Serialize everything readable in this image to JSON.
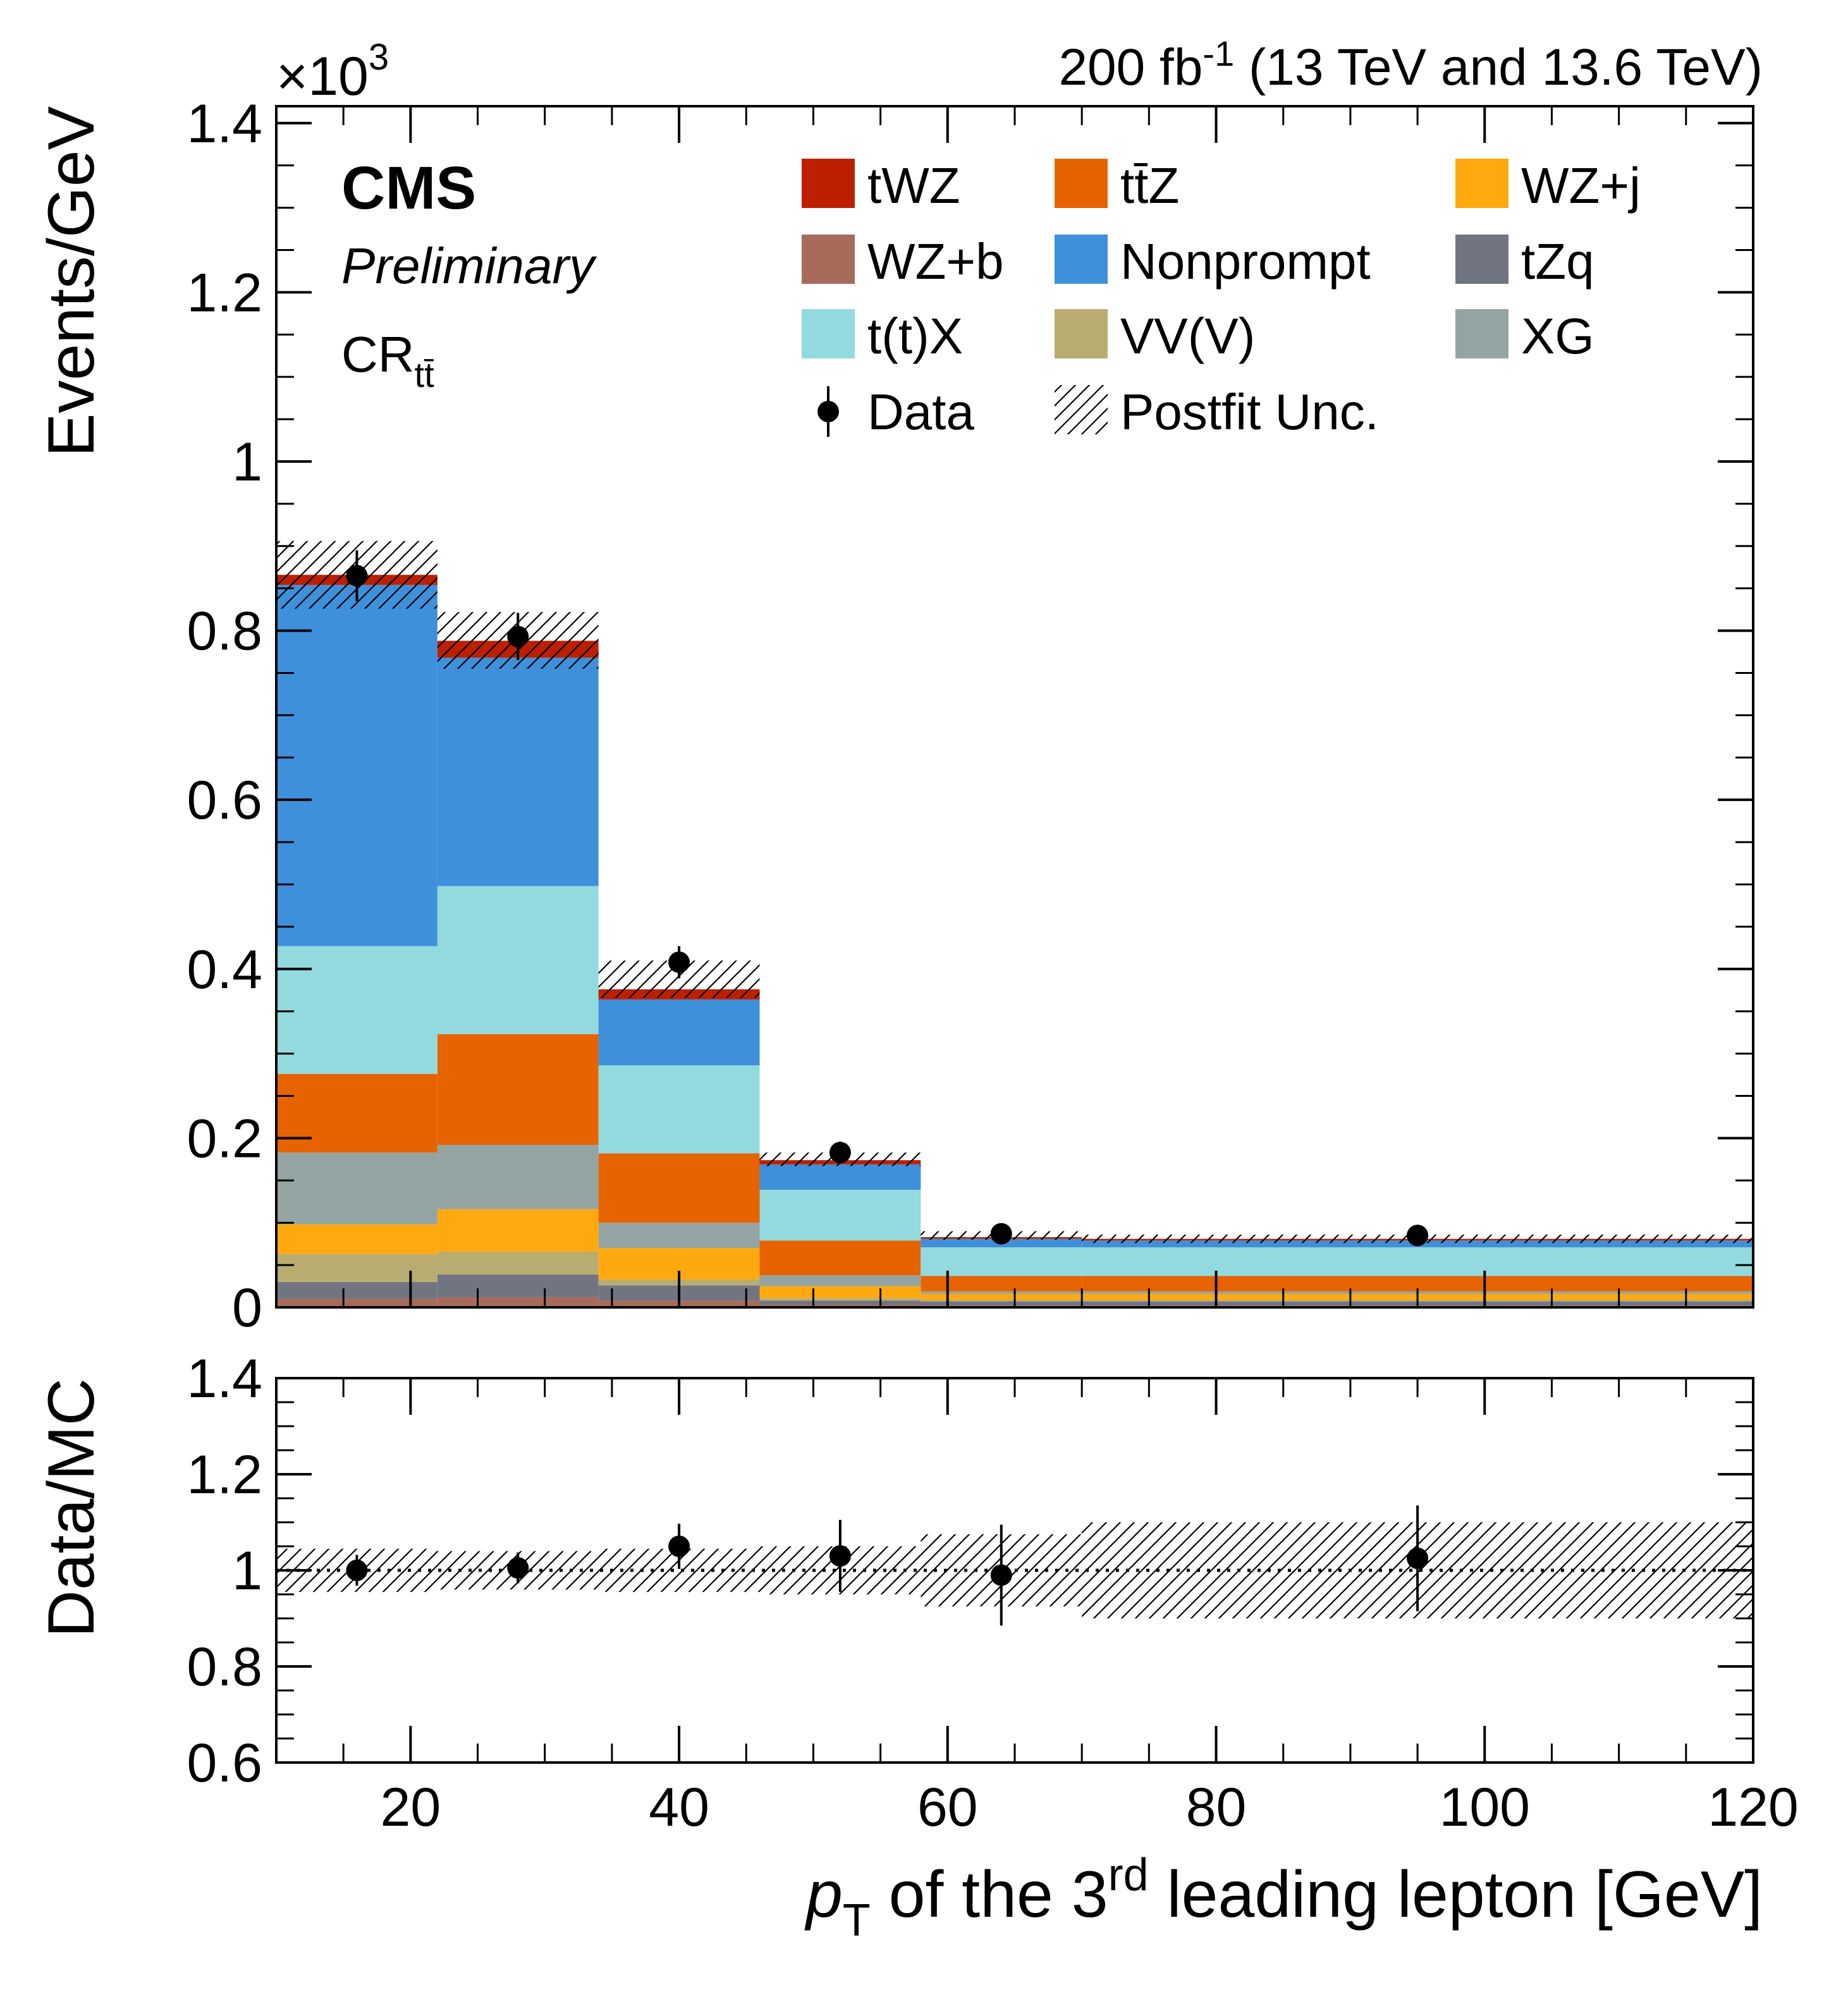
{
  "chart_data": {
    "type": "bar",
    "stacked": true,
    "header": {
      "lumi_value": "200 fb",
      "lumi_exp": "-1",
      "lumi_rest": " (13 TeV and 13.6 TeV)"
    },
    "labels": {
      "experiment": "CMS",
      "status": "Preliminary",
      "region_main": "CR",
      "region_sub": "tt̄"
    },
    "top_panel": {
      "ylabel": "Events/GeV",
      "scale_base": "×10",
      "scale_exp": "3",
      "ylim": [
        0,
        1.42
      ],
      "yticks": [
        {
          "v": 0,
          "label": "0"
        },
        {
          "v": 0.2,
          "label": "0.2"
        },
        {
          "v": 0.4,
          "label": "0.4"
        },
        {
          "v": 0.6,
          "label": "0.6"
        },
        {
          "v": 0.8,
          "label": "0.8"
        },
        {
          "v": 1.0,
          "label": "1"
        },
        {
          "v": 1.2,
          "label": "1.2"
        },
        {
          "v": 1.4,
          "label": "1.4"
        }
      ]
    },
    "bottom_panel": {
      "ylabel": "Data/MC",
      "ylim": [
        0.6,
        1.4
      ],
      "reference_line": 1.0,
      "yticks": [
        {
          "v": 0.6,
          "label": "0.6"
        },
        {
          "v": 0.8,
          "label": "0.8"
        },
        {
          "v": 1.0,
          "label": "1"
        },
        {
          "v": 1.2,
          "label": "1.2"
        },
        {
          "v": 1.4,
          "label": "1.4"
        }
      ]
    },
    "x_axis": {
      "xlim": [
        10,
        120
      ],
      "xlabel_var": "p",
      "xlabel_sub": "T",
      "xlabel_mid": " of the 3",
      "xlabel_sup": "rd",
      "xlabel_end": " leading lepton [GeV]",
      "xticks": [
        {
          "v": 20,
          "label": "20"
        },
        {
          "v": 40,
          "label": "40"
        },
        {
          "v": 60,
          "label": "60"
        },
        {
          "v": 80,
          "label": "80"
        },
        {
          "v": 100,
          "label": "100"
        },
        {
          "v": 120,
          "label": "120"
        }
      ]
    },
    "bin_edges": [
      10,
      22,
      34,
      46,
      58,
      70,
      120
    ],
    "stack": [
      {
        "name": "WZ+b",
        "color": "#a96b59",
        "values": [
          0.01,
          0.012,
          0.008,
          0.003,
          0.002,
          0.002
        ]
      },
      {
        "name": "tZq",
        "color": "#717581",
        "values": [
          0.02,
          0.027,
          0.018,
          0.005,
          0.005,
          0.005
        ]
      },
      {
        "name": "VV(V)",
        "color": "#b9ac70",
        "values": [
          0.033,
          0.027,
          0.007,
          0.003,
          0.002,
          0.002
        ]
      },
      {
        "name": "WZ+j",
        "color": "#ffa90e",
        "values": [
          0.035,
          0.05,
          0.037,
          0.014,
          0.007,
          0.007
        ]
      },
      {
        "name": "XG",
        "color": "#94a4a2",
        "values": [
          0.085,
          0.076,
          0.03,
          0.013,
          0.003,
          0.003
        ]
      },
      {
        "name": "tt̄Z",
        "color": "#e76300",
        "values": [
          0.093,
          0.131,
          0.082,
          0.041,
          0.018,
          0.018
        ]
      },
      {
        "name": "t(t)X",
        "color": "#92dadd",
        "values": [
          0.151,
          0.175,
          0.104,
          0.06,
          0.034,
          0.034
        ]
      },
      {
        "name": "Nonprompt",
        "color": "#3f90da",
        "values": [
          0.427,
          0.27,
          0.078,
          0.03,
          0.01,
          0.008
        ]
      },
      {
        "name": "tWZ",
        "color": "#bd1f01",
        "values": [
          0.012,
          0.02,
          0.012,
          0.005,
          0.002,
          0.002
        ]
      }
    ],
    "postfit_unc": {
      "label": "Postfit Unc.",
      "down": [
        0.826,
        0.755,
        0.366,
        0.167,
        0.08,
        0.076
      ],
      "up": [
        0.906,
        0.822,
        0.41,
        0.183,
        0.09,
        0.086
      ]
    },
    "ratio_unc": {
      "down": [
        0.955,
        0.96,
        0.955,
        0.95,
        0.925,
        0.9
      ],
      "up": [
        1.045,
        1.04,
        1.045,
        1.05,
        1.075,
        1.1
      ]
    },
    "data": {
      "label": "Data",
      "x": [
        16,
        28,
        40,
        52,
        64,
        95
      ],
      "y": [
        0.865,
        0.793,
        0.408,
        0.183,
        0.087,
        0.085
      ],
      "yerr": [
        0.03,
        0.028,
        0.019,
        0.013,
        0.007,
        0.006
      ],
      "ratio": [
        1.0,
        1.005,
        1.05,
        1.03,
        0.99,
        1.025
      ],
      "ratio_err": [
        0.032,
        0.032,
        0.047,
        0.075,
        0.105,
        0.11
      ]
    },
    "legend": [
      {
        "name": "tWZ",
        "kind": "fill",
        "color": "#bd1f01"
      },
      {
        "name": "tt̄Z",
        "kind": "fill",
        "color": "#e76300"
      },
      {
        "name": "WZ+j",
        "kind": "fill",
        "color": "#ffa90e"
      },
      {
        "name": "WZ+b",
        "kind": "fill",
        "color": "#a96b59"
      },
      {
        "name": "Nonprompt",
        "kind": "fill",
        "color": "#3f90da"
      },
      {
        "name": "tZq",
        "kind": "fill",
        "color": "#717581"
      },
      {
        "name": "t(t)X",
        "kind": "fill",
        "color": "#92dadd"
      },
      {
        "name": "VV(V)",
        "kind": "fill",
        "color": "#b9ac70"
      },
      {
        "name": "XG",
        "kind": "fill",
        "color": "#94a4a2"
      },
      {
        "name": "Data",
        "kind": "marker",
        "color": "#000000"
      },
      {
        "name": "Postfit Unc.",
        "kind": "hatch",
        "color": "#000000"
      }
    ]
  }
}
